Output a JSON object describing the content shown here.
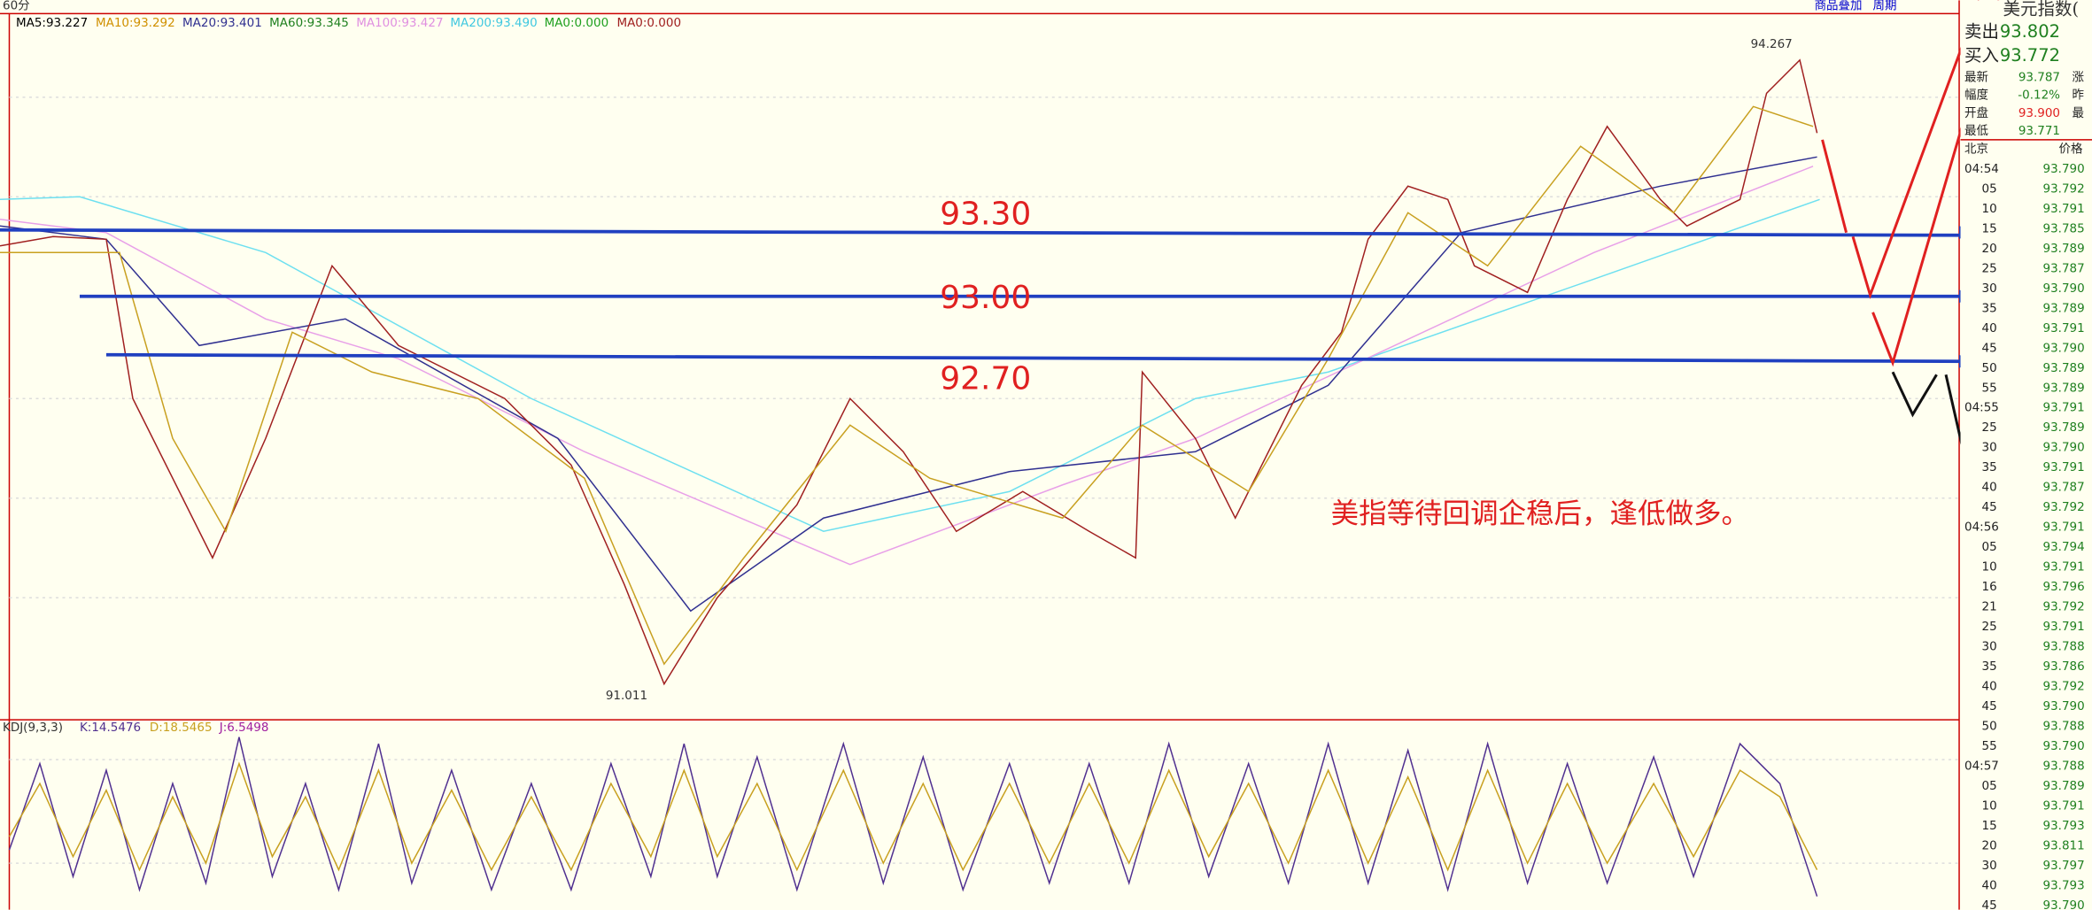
{
  "toolbar": {
    "period": "60分",
    "links": [
      "商品叠加",
      "周期"
    ]
  },
  "indicators": {
    "ma": [
      "MA5:93.227",
      "MA10:93.292",
      "MA20:93.401",
      "MA60:93.345",
      "MA100:93.427",
      "MA200:93.490",
      "MA0:0.000",
      "MA0:0.000"
    ],
    "kdj": [
      "KDJ(9,3,3)",
      "K:14.5476",
      "D:18.5465",
      "J:6.5498"
    ]
  },
  "annotations": {
    "levels": [
      "93.30",
      "93.00",
      "92.70"
    ],
    "note": "美指等待回调企稳后，逢低做多。",
    "high": "94.267",
    "low": "91.011"
  },
  "quote": {
    "title": "美元指数(",
    "rows": [
      [
        "卖出",
        "93.802"
      ],
      [
        "买入",
        "93.772"
      ],
      [
        "最新",
        "93.787"
      ],
      [
        "幅度",
        "-0.12%"
      ],
      [
        "开盘",
        "93.900"
      ],
      [
        "最低",
        "93.771"
      ]
    ],
    "side": [
      "涨",
      "昨",
      "最"
    ],
    "header": [
      "北京",
      "价格"
    ],
    "ticks": [
      [
        "04:54",
        "93.790"
      ],
      [
        "05",
        "93.792"
      ],
      [
        "10",
        "93.791"
      ],
      [
        "15",
        "93.785"
      ],
      [
        "20",
        "93.789"
      ],
      [
        "25",
        "93.787"
      ],
      [
        "30",
        "93.790"
      ],
      [
        "35",
        "93.789"
      ],
      [
        "40",
        "93.791"
      ],
      [
        "45",
        "93.790"
      ],
      [
        "50",
        "93.789"
      ],
      [
        "55",
        "93.789"
      ],
      [
        "04:55",
        "93.791"
      ],
      [
        "25",
        "93.789"
      ],
      [
        "30",
        "93.790"
      ],
      [
        "35",
        "93.791"
      ],
      [
        "40",
        "93.787"
      ],
      [
        "45",
        "93.792"
      ],
      [
        "04:56",
        "93.791"
      ],
      [
        "05",
        "93.794"
      ],
      [
        "10",
        "93.791"
      ],
      [
        "16",
        "93.796"
      ],
      [
        "21",
        "93.792"
      ],
      [
        "25",
        "93.791"
      ],
      [
        "30",
        "93.788"
      ],
      [
        "35",
        "93.786"
      ],
      [
        "40",
        "93.792"
      ],
      [
        "45",
        "93.790"
      ],
      [
        "50",
        "93.788"
      ],
      [
        "55",
        "93.790"
      ],
      [
        "04:57",
        "93.788"
      ],
      [
        "05",
        "93.789"
      ],
      [
        "10",
        "93.791"
      ],
      [
        "15",
        "93.793"
      ],
      [
        "20",
        "93.811"
      ],
      [
        "30",
        "93.797"
      ],
      [
        "40",
        "93.793"
      ],
      [
        "45",
        "93.790"
      ]
    ]
  }
}
